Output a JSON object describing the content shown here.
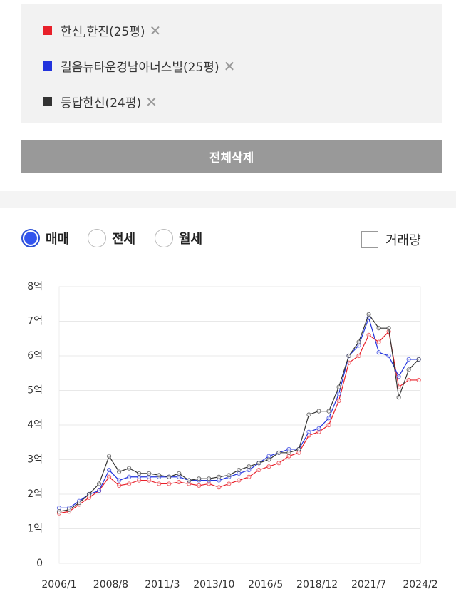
{
  "filter_panel": {
    "button": "전체삭제"
  },
  "options": {
    "radios": [
      "매매",
      "전세",
      "월세"
    ],
    "checkbox": "거래량"
  },
  "chart_data": {
    "type": "line",
    "x": [
      "2006/1",
      "2006/7",
      "2007/1",
      "2007/7",
      "2008/1",
      "2008/7",
      "2009/1",
      "2009/7",
      "2010/1",
      "2010/7",
      "2011/1",
      "2011/7",
      "2012/1",
      "2012/7",
      "2013/1",
      "2013/7",
      "2014/1",
      "2014/7",
      "2015/1",
      "2015/7",
      "2016/1",
      "2016/7",
      "2017/1",
      "2017/7",
      "2018/1",
      "2018/7",
      "2019/1",
      "2019/7",
      "2020/1",
      "2020/7",
      "2021/1",
      "2021/7",
      "2022/1",
      "2022/7",
      "2023/1",
      "2023/7",
      "2024/1"
    ],
    "series": [
      {
        "name": "한신,한진(25평)",
        "color": "#e8202a",
        "values": [
          1.45,
          1.5,
          1.7,
          1.9,
          2.1,
          2.5,
          2.25,
          2.3,
          2.4,
          2.4,
          2.3,
          2.3,
          2.35,
          2.3,
          2.25,
          2.3,
          2.2,
          2.3,
          2.4,
          2.5,
          2.7,
          2.8,
          2.9,
          3.1,
          3.2,
          3.7,
          3.8,
          4.0,
          4.7,
          5.8,
          6.0,
          6.6,
          6.4,
          6.7,
          5.1,
          5.3,
          5.3
        ]
      },
      {
        "name": "길음뉴타운경남아너스빌(25평)",
        "color": "#2233dd",
        "values": [
          1.6,
          1.6,
          1.8,
          2.0,
          2.1,
          2.7,
          2.4,
          2.5,
          2.5,
          2.5,
          2.5,
          2.5,
          2.5,
          2.4,
          2.4,
          2.4,
          2.4,
          2.5,
          2.6,
          2.7,
          2.9,
          3.1,
          3.2,
          3.3,
          3.3,
          3.8,
          3.9,
          4.2,
          4.9,
          6.0,
          6.3,
          7.1,
          6.1,
          6.0,
          5.4,
          5.9,
          5.9
        ]
      },
      {
        "name": "등답한신(24평)",
        "color": "#333333",
        "values": [
          1.5,
          1.55,
          1.75,
          2.0,
          2.3,
          3.1,
          2.65,
          2.75,
          2.6,
          2.6,
          2.55,
          2.5,
          2.6,
          2.4,
          2.45,
          2.45,
          2.5,
          2.55,
          2.7,
          2.8,
          2.9,
          3.0,
          3.2,
          3.2,
          3.3,
          4.3,
          4.4,
          4.4,
          5.1,
          6.0,
          6.4,
          7.2,
          6.8,
          6.8,
          4.8,
          5.6,
          5.9
        ]
      }
    ],
    "xlim": [
      "2006/1",
      "2024/2"
    ],
    "xticks": [
      "2006/1",
      "2008/8",
      "2011/3",
      "2013/10",
      "2016/5",
      "2018/12",
      "2021/7",
      "2024/2"
    ],
    "ylim": [
      0,
      8
    ],
    "yticks": [
      0,
      {
        "value": 1,
        "label": "1억"
      },
      {
        "value": 2,
        "label": "2억"
      },
      {
        "value": 3,
        "label": "3억"
      },
      {
        "value": 4,
        "label": "4억"
      },
      {
        "value": 5,
        "label": "5억"
      },
      {
        "value": 6,
        "label": "6억"
      },
      {
        "value": 7,
        "label": "7억"
      },
      {
        "value": 8,
        "label": "8억"
      }
    ],
    "grid": true
  }
}
